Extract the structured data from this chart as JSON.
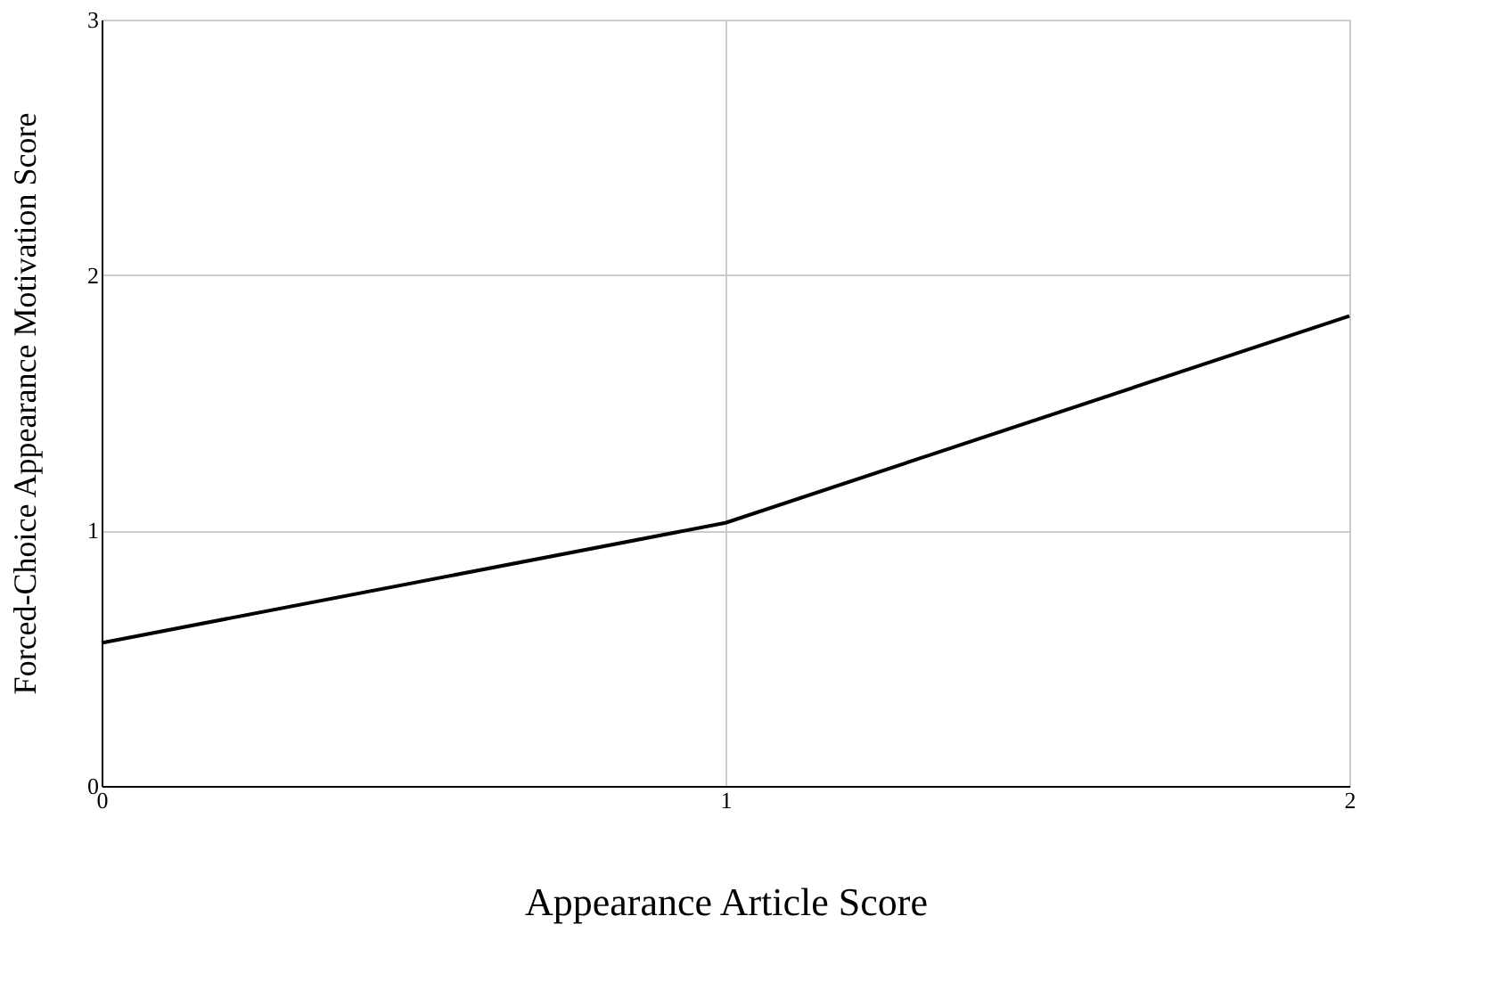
{
  "chart_data": {
    "type": "line",
    "xlabel": "Appearance Article Score",
    "ylabel": "Forced-Choice Appearance Motivation Score",
    "x": [
      0,
      1,
      2
    ],
    "series": [
      {
        "color": "#000000",
        "values": [
          0.56,
          1.03,
          1.84
        ]
      }
    ],
    "xlim": [
      0,
      2
    ],
    "xticks": [
      0,
      1,
      2
    ],
    "ylim": [
      0,
      3
    ],
    "yticks": [
      0,
      1,
      2,
      3
    ],
    "grid": true,
    "legend": false,
    "marker": "none",
    "line_style": "solid"
  }
}
